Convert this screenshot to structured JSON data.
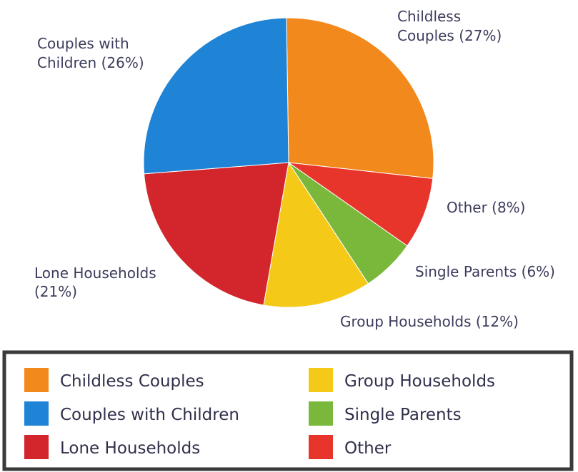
{
  "chart_data": {
    "type": "pie",
    "title": "",
    "slices": [
      {
        "name": "Childless Couples",
        "value": 27,
        "color": "#f2891c",
        "label_lines": [
          "Childless",
          "Couples (27%)"
        ]
      },
      {
        "name": "Other",
        "value": 8,
        "color": "#e8352c",
        "label_lines": [
          "Other (8%)"
        ]
      },
      {
        "name": "Single Parents",
        "value": 6,
        "color": "#7ab83c",
        "label_lines": [
          "Single Parents (6%)"
        ]
      },
      {
        "name": "Group Households",
        "value": 12,
        "color": "#f5c918",
        "label_lines": [
          "Group Households (12%)"
        ]
      },
      {
        "name": "Lone Households",
        "value": 21,
        "color": "#d2262c",
        "label_lines": [
          "Lone Households",
          "(21%)"
        ]
      },
      {
        "name": "Couples with Children",
        "value": 26,
        "color": "#1f83d6",
        "label_lines": [
          "Couples with",
          "Children (26%)"
        ]
      }
    ],
    "legend": {
      "placement": "bottom",
      "columns": [
        [
          {
            "name": "Childless Couples",
            "color": "#f2891c"
          },
          {
            "name": "Couples with Children",
            "color": "#1f83d6"
          },
          {
            "name": "Lone Households",
            "color": "#d2262c"
          }
        ],
        [
          {
            "name": "Group Households",
            "color": "#f5c918"
          },
          {
            "name": "Single Parents",
            "color": "#7ab83c"
          },
          {
            "name": "Other",
            "color": "#e8352c"
          }
        ]
      ]
    }
  }
}
